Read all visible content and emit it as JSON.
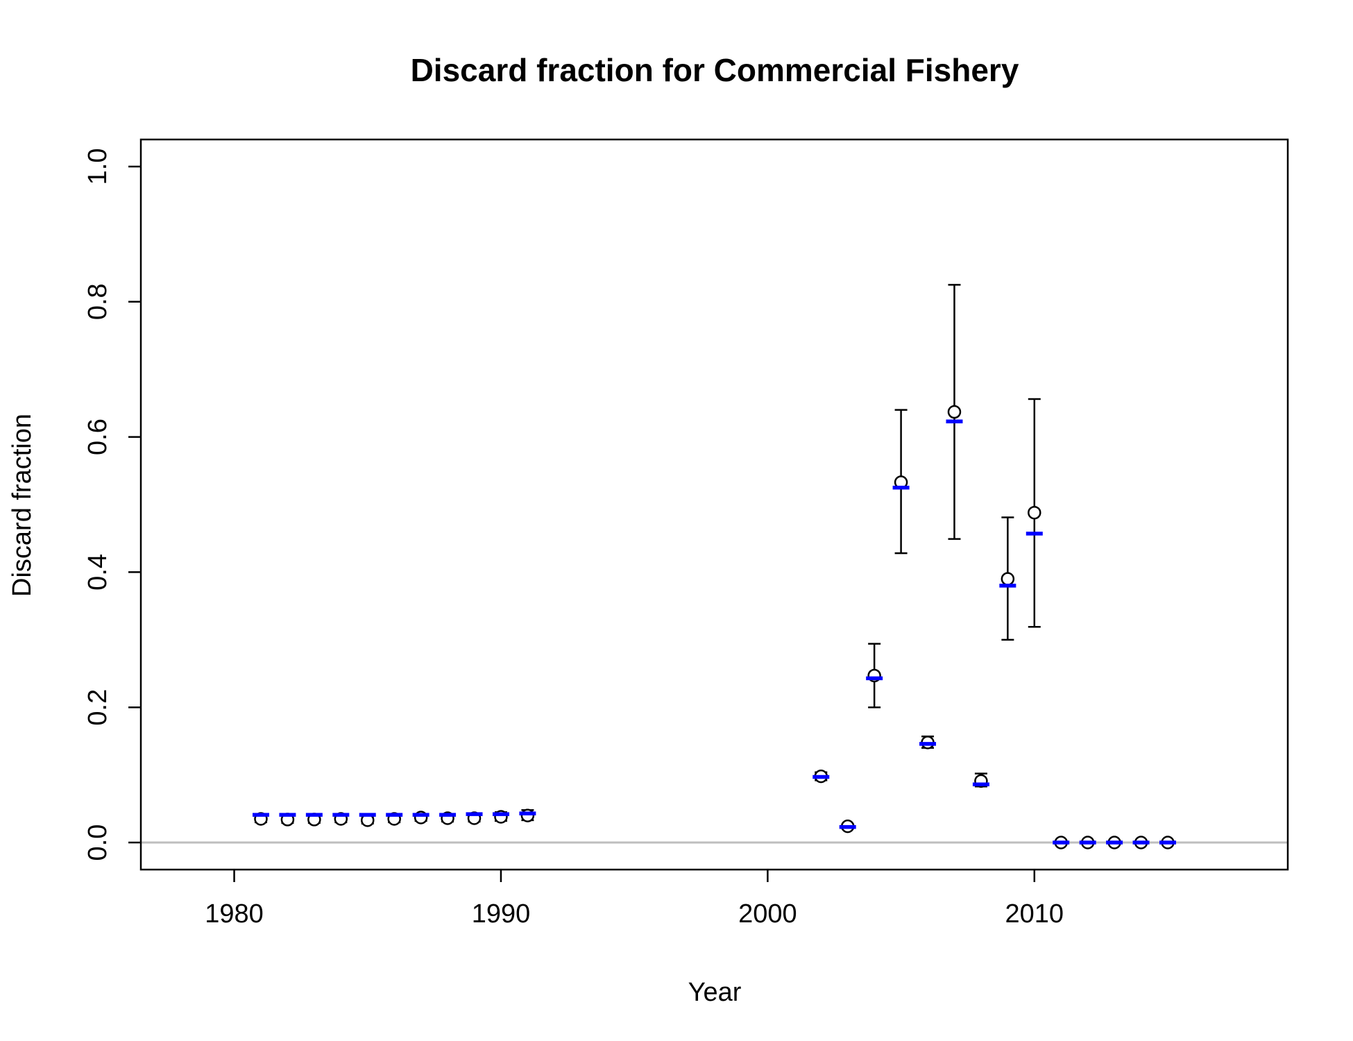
{
  "chart_data": {
    "type": "scatter",
    "title": "Discard fraction for Commercial Fishery",
    "xlabel": "Year",
    "ylabel": "Discard fraction",
    "xlim": [
      1976.5,
      2019.5
    ],
    "ylim": [
      -0.04,
      1.04
    ],
    "xticks": [
      1980,
      1990,
      2000,
      2010
    ],
    "xtick_labels": [
      "1980",
      "1990",
      "2000",
      "2010"
    ],
    "yticks": [
      0.0,
      0.2,
      0.4,
      0.6,
      0.8,
      1.0
    ],
    "ytick_labels": [
      "0.0",
      "0.2",
      "0.4",
      "0.6",
      "0.8",
      "1.0"
    ],
    "grid": false,
    "reference_line": {
      "y": 0,
      "color": "#bebebe"
    },
    "colors": {
      "observed": "#000000",
      "expected": "#0000ff"
    },
    "series": [
      {
        "marker": "open-circle-with-error-bar",
        "points": [
          {
            "x": 1981,
            "y": 0.035,
            "lo": 0.03,
            "hi": 0.04
          },
          {
            "x": 1982,
            "y": 0.034,
            "lo": 0.029,
            "hi": 0.039
          },
          {
            "x": 1983,
            "y": 0.034,
            "lo": 0.029,
            "hi": 0.039
          },
          {
            "x": 1984,
            "y": 0.035,
            "lo": 0.03,
            "hi": 0.04
          },
          {
            "x": 1985,
            "y": 0.033,
            "lo": 0.028,
            "hi": 0.038
          },
          {
            "x": 1986,
            "y": 0.035,
            "lo": 0.03,
            "hi": 0.04
          },
          {
            "x": 1987,
            "y": 0.037,
            "lo": 0.032,
            "hi": 0.042
          },
          {
            "x": 1988,
            "y": 0.036,
            "lo": 0.031,
            "hi": 0.041
          },
          {
            "x": 1989,
            "y": 0.036,
            "lo": 0.031,
            "hi": 0.041
          },
          {
            "x": 1990,
            "y": 0.038,
            "lo": 0.032,
            "hi": 0.045
          },
          {
            "x": 1991,
            "y": 0.04,
            "lo": 0.033,
            "hi": 0.048
          },
          {
            "x": 2002,
            "y": 0.098,
            "lo": 0.092,
            "hi": 0.104
          },
          {
            "x": 2003,
            "y": 0.024,
            "lo": 0.021,
            "hi": 0.027
          },
          {
            "x": 2004,
            "y": 0.247,
            "lo": 0.2,
            "hi": 0.294
          },
          {
            "x": 2005,
            "y": 0.533,
            "lo": 0.428,
            "hi": 0.64
          },
          {
            "x": 2006,
            "y": 0.148,
            "lo": 0.14,
            "hi": 0.157
          },
          {
            "x": 2007,
            "y": 0.637,
            "lo": 0.449,
            "hi": 0.825
          },
          {
            "x": 2008,
            "y": 0.091,
            "lo": 0.083,
            "hi": 0.102
          },
          {
            "x": 2009,
            "y": 0.39,
            "lo": 0.3,
            "hi": 0.481
          },
          {
            "x": 2010,
            "y": 0.488,
            "lo": 0.319,
            "hi": 0.656
          },
          {
            "x": 2011,
            "y": 0.0,
            "lo": 0.0,
            "hi": 0.002
          },
          {
            "x": 2012,
            "y": 0.0,
            "lo": 0.0,
            "hi": 0.002
          },
          {
            "x": 2013,
            "y": 0.0,
            "lo": 0.0,
            "hi": 0.002
          },
          {
            "x": 2014,
            "y": 0.0,
            "lo": 0.0,
            "hi": 0.002
          },
          {
            "x": 2015,
            "y": 0.0,
            "lo": 0.0,
            "hi": 0.002
          }
        ]
      },
      {
        "marker": "blue-dash",
        "points": [
          {
            "x": 1981,
            "y": 0.041
          },
          {
            "x": 1982,
            "y": 0.041
          },
          {
            "x": 1983,
            "y": 0.041
          },
          {
            "x": 1984,
            "y": 0.041
          },
          {
            "x": 1985,
            "y": 0.041
          },
          {
            "x": 1986,
            "y": 0.041
          },
          {
            "x": 1987,
            "y": 0.041
          },
          {
            "x": 1988,
            "y": 0.041
          },
          {
            "x": 1989,
            "y": 0.042
          },
          {
            "x": 1990,
            "y": 0.042
          },
          {
            "x": 1991,
            "y": 0.043
          },
          {
            "x": 2002,
            "y": 0.097
          },
          {
            "x": 2003,
            "y": 0.023
          },
          {
            "x": 2004,
            "y": 0.243
          },
          {
            "x": 2005,
            "y": 0.525
          },
          {
            "x": 2006,
            "y": 0.146
          },
          {
            "x": 2007,
            "y": 0.623
          },
          {
            "x": 2008,
            "y": 0.086
          },
          {
            "x": 2009,
            "y": 0.38
          },
          {
            "x": 2010,
            "y": 0.457
          },
          {
            "x": 2011,
            "y": 0.0
          },
          {
            "x": 2012,
            "y": 0.0
          },
          {
            "x": 2013,
            "y": 0.0
          },
          {
            "x": 2014,
            "y": 0.0
          },
          {
            "x": 2015,
            "y": 0.0
          }
        ]
      }
    ]
  }
}
